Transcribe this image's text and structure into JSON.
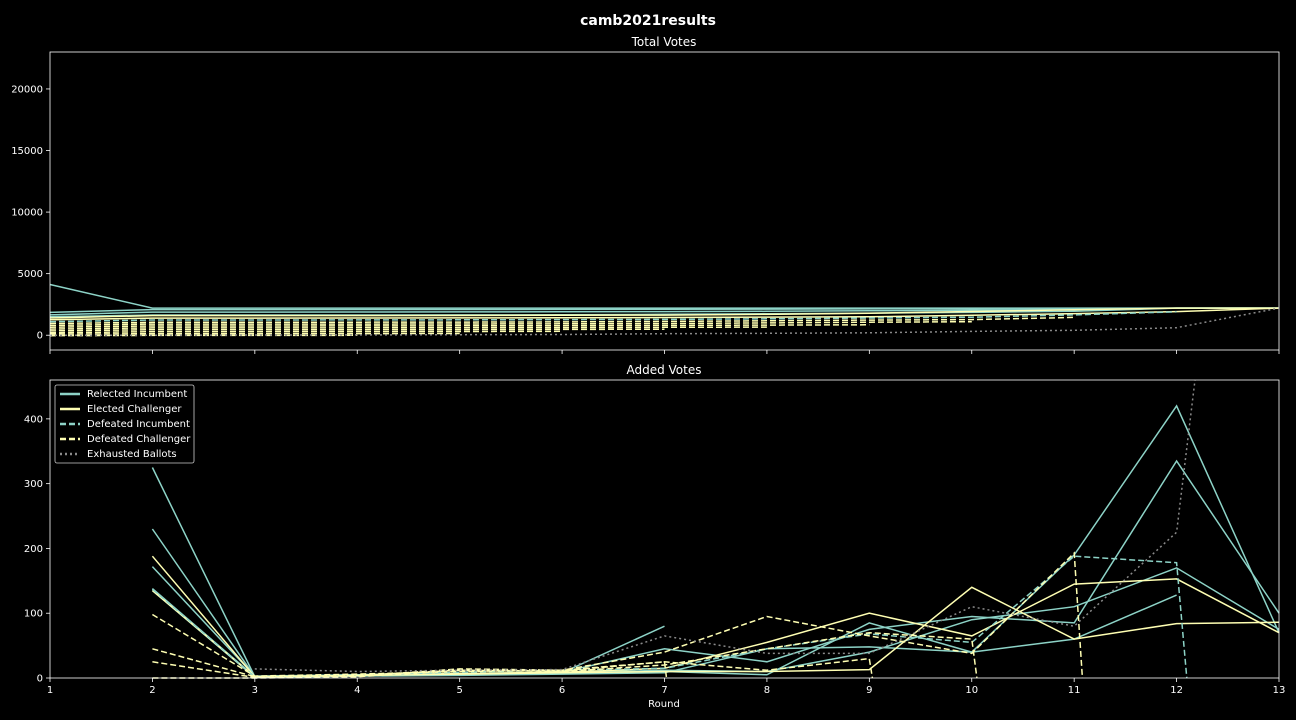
{
  "figure": {
    "title": "camb2021results"
  },
  "colors": {
    "incumbent": "#8dd3c7",
    "challenger": "#ffffb3",
    "exhausted": "#8a8a8a",
    "axes": "#ffffff",
    "background": "#000000"
  },
  "chart_data": [
    {
      "type": "line",
      "title": "Total Votes",
      "xlim": [
        1,
        13
      ],
      "ylim": [
        -1200,
        23000
      ],
      "x_ticks": [
        1,
        2,
        3,
        4,
        5,
        6,
        7,
        8,
        9,
        10,
        11,
        12,
        13
      ],
      "y_ticks": [
        0,
        5000,
        10000,
        15000,
        20000
      ],
      "series": [
        {
          "kind": "reelected",
          "x": [
            1,
            2,
            3,
            4,
            5,
            6,
            7,
            8,
            9,
            10,
            11,
            12,
            13
          ],
          "y": [
            4120,
            2200,
            2200,
            2200,
            2200,
            2200,
            2200,
            2200,
            2200,
            2200,
            2200,
            2200,
            2200
          ]
        },
        {
          "kind": "reelected",
          "x": [
            1,
            2,
            3,
            4,
            5,
            6,
            7,
            8,
            9,
            10,
            11,
            12,
            13
          ],
          "y": [
            1850,
            2080,
            2080,
            2085,
            2090,
            2095,
            2110,
            2120,
            2140,
            2150,
            2170,
            2200,
            2200
          ]
        },
        {
          "kind": "reelected",
          "x": [
            1,
            2,
            3,
            4,
            5,
            6,
            7,
            8,
            9,
            10,
            11,
            12,
            13
          ],
          "y": [
            1650,
            1880,
            1880,
            1885,
            1890,
            1900,
            1920,
            1940,
            1980,
            2020,
            2120,
            2200,
            2200
          ]
        },
        {
          "kind": "reelected",
          "x": [
            1,
            2,
            3,
            4,
            5,
            6,
            7,
            8,
            9,
            10,
            11,
            12,
            13
          ],
          "y": [
            1500,
            1640,
            1640,
            1645,
            1650,
            1660,
            1700,
            1750,
            1800,
            1850,
            1950,
            2200,
            2200
          ]
        },
        {
          "kind": "elected",
          "x": [
            1,
            2,
            3,
            4,
            5,
            6,
            7,
            8,
            9,
            10,
            11,
            12,
            13
          ],
          "y": [
            1400,
            1590,
            1590,
            1595,
            1605,
            1615,
            1635,
            1690,
            1790,
            1930,
            2070,
            2200,
            2200
          ]
        },
        {
          "kind": "elected",
          "x": [
            1,
            2,
            3,
            4,
            5,
            6,
            7,
            8,
            9,
            10,
            11,
            12,
            13
          ],
          "y": [
            1250,
            1390,
            1390,
            1395,
            1405,
            1415,
            1440,
            1470,
            1500,
            1620,
            1760,
            1920,
            2200
          ]
        },
        {
          "kind": "defeated_inc",
          "x": [
            1,
            2,
            3,
            4,
            5,
            6,
            7,
            8,
            9,
            10,
            11,
            12
          ],
          "y": [
            1100,
            1240,
            1240,
            1245,
            1255,
            1265,
            1285,
            1330,
            1400,
            1460,
            1650,
            1900
          ]
        },
        {
          "kind": "defeated_ch",
          "x": [
            1,
            2,
            3,
            4,
            5,
            6,
            7,
            8,
            9,
            10,
            11
          ],
          "y": [
            950,
            1050,
            1050,
            1055,
            1065,
            1080,
            1120,
            1170,
            1230,
            1270,
            1450
          ]
        },
        {
          "kind": "defeated_ch",
          "x": [
            1,
            2,
            3,
            4,
            5,
            6,
            7,
            8,
            9,
            10
          ],
          "y": [
            800,
            900,
            900,
            905,
            915,
            925,
            950,
            1000,
            1060,
            1100
          ]
        },
        {
          "kind": "defeated_ch",
          "x": [
            1,
            2,
            3,
            4,
            5,
            6,
            7,
            8,
            9
          ],
          "y": [
            650,
            750,
            750,
            755,
            765,
            775,
            800,
            820,
            850
          ]
        },
        {
          "kind": "defeated_ch",
          "x": [
            1,
            2,
            3,
            4,
            5,
            6,
            7,
            8
          ],
          "y": [
            500,
            595,
            595,
            600,
            610,
            620,
            640,
            660
          ]
        },
        {
          "kind": "defeated_ch",
          "x": [
            1,
            2,
            3,
            4,
            5,
            6,
            7
          ],
          "y": [
            350,
            445,
            445,
            450,
            460,
            470,
            490
          ]
        },
        {
          "kind": "defeated_ch",
          "x": [
            1,
            2,
            3,
            4,
            5,
            6
          ],
          "y": [
            200,
            290,
            290,
            295,
            305,
            315
          ]
        },
        {
          "kind": "defeated_ch",
          "x": [
            1,
            2,
            3,
            4,
            5
          ],
          "y": [
            80,
            125,
            125,
            130,
            140
          ]
        },
        {
          "kind": "defeated_ch",
          "x": [
            1,
            2,
            3,
            4
          ],
          "y": [
            -40,
            -15,
            -15,
            -10
          ]
        },
        {
          "kind": "exhausted",
          "x": [
            1,
            2,
            3,
            4,
            5,
            6,
            7,
            8,
            9,
            10,
            11,
            12,
            13
          ],
          "y": [
            0,
            0,
            15,
            25,
            40,
            55,
            120,
            160,
            200,
            310,
            400,
            610,
            2200
          ]
        }
      ]
    },
    {
      "type": "line",
      "title": "Added Votes",
      "xlabel": "Round",
      "xlim": [
        1,
        13
      ],
      "ylim": [
        0,
        460
      ],
      "x_ticks": [
        1,
        2,
        3,
        4,
        5,
        6,
        7,
        8,
        9,
        10,
        11,
        12,
        13
      ],
      "y_ticks": [
        0,
        100,
        200,
        300,
        400
      ],
      "legend": {
        "position": "upper-left",
        "entries": [
          {
            "label": "Relected Incumbent",
            "kind": "reelected"
          },
          {
            "label": "Elected Challenger",
            "kind": "elected"
          },
          {
            "label": "Defeated Incumbent",
            "kind": "defeated_inc"
          },
          {
            "label": "Defeated Challenger",
            "kind": "defeated_ch"
          },
          {
            "label": "Exhausted Ballots",
            "kind": "exhausted"
          }
        ]
      },
      "series": [
        {
          "kind": "reelected",
          "x": [
            2,
            3,
            4,
            5,
            6,
            7
          ],
          "y": [
            325,
            2,
            5,
            6,
            8,
            80
          ]
        },
        {
          "kind": "reelected",
          "x": [
            2,
            3,
            4,
            5,
            6,
            7,
            8,
            9,
            10,
            11,
            12,
            13
          ],
          "y": [
            230,
            2,
            4,
            5,
            7,
            10,
            5,
            85,
            40,
            190,
            420,
            70
          ]
        },
        {
          "kind": "reelected",
          "x": [
            2,
            3,
            4,
            5,
            6,
            7,
            8,
            9,
            10,
            11,
            12,
            13
          ],
          "y": [
            172,
            3,
            5,
            7,
            9,
            45,
            25,
            75,
            95,
            85,
            335,
            100
          ]
        },
        {
          "kind": "reelected",
          "x": [
            2,
            3,
            4,
            5,
            6,
            7,
            8,
            9,
            10,
            11,
            12,
            13
          ],
          "y": [
            138,
            2,
            4,
            6,
            8,
            12,
            10,
            40,
            90,
            110,
            170,
            75
          ]
        },
        {
          "kind": "reelected",
          "x": [
            2,
            3,
            4,
            5,
            6,
            7,
            8,
            9,
            10,
            11,
            12
          ],
          "y": [
            135,
            1,
            3,
            4,
            6,
            8,
            45,
            48,
            40,
            60,
            128
          ]
        },
        {
          "kind": "elected",
          "x": [
            2,
            3,
            4,
            5,
            6,
            7,
            8,
            9,
            10,
            11,
            12,
            13
          ],
          "y": [
            188,
            2,
            4,
            7,
            9,
            15,
            55,
            100,
            65,
            145,
            153,
            70
          ]
        },
        {
          "kind": "elected",
          "x": [
            2,
            3,
            4,
            5,
            6,
            7,
            8,
            9,
            10,
            11,
            12,
            13
          ],
          "y": [
            135,
            2,
            4,
            6,
            8,
            10,
            10,
            13,
            140,
            60,
            84,
            86
          ]
        },
        {
          "kind": "defeated_inc",
          "x": [
            2,
            3,
            4,
            5,
            6,
            7,
            8,
            9,
            10,
            11,
            12,
            12.1
          ],
          "y": [
            137,
            2,
            5,
            9,
            12,
            15,
            45,
            68,
            55,
            188,
            178,
            0
          ]
        },
        {
          "kind": "defeated_ch",
          "x": [
            2,
            3,
            4,
            5,
            6,
            7,
            8,
            9,
            10,
            11,
            11.08
          ],
          "y": [
            98,
            3,
            6,
            10,
            12,
            40,
            95,
            65,
            38,
            193,
            0
          ]
        },
        {
          "kind": "defeated_ch",
          "x": [
            2,
            3,
            4,
            5,
            6,
            7,
            8,
            9,
            10,
            10.05
          ],
          "y": [
            45,
            2,
            4,
            12,
            10,
            20,
            45,
            70,
            60,
            0
          ]
        },
        {
          "kind": "defeated_ch",
          "x": [
            2,
            3,
            4,
            5,
            6,
            7,
            8,
            9,
            9.03
          ],
          "y": [
            25,
            1,
            3,
            14,
            12,
            25,
            12,
            30,
            0
          ]
        },
        {
          "kind": "defeated_ch",
          "x": [
            2,
            3,
            4,
            5,
            6,
            7,
            7.02
          ],
          "y": [
            0,
            0,
            2,
            12,
            11,
            25,
            0
          ]
        },
        {
          "kind": "exhausted",
          "x": [
            3,
            4,
            5,
            6,
            7,
            8,
            9,
            10,
            11,
            12,
            12.18
          ],
          "y": [
            14,
            10,
            12,
            13,
            65,
            38,
            38,
            110,
            80,
            225,
            460
          ]
        }
      ]
    }
  ]
}
